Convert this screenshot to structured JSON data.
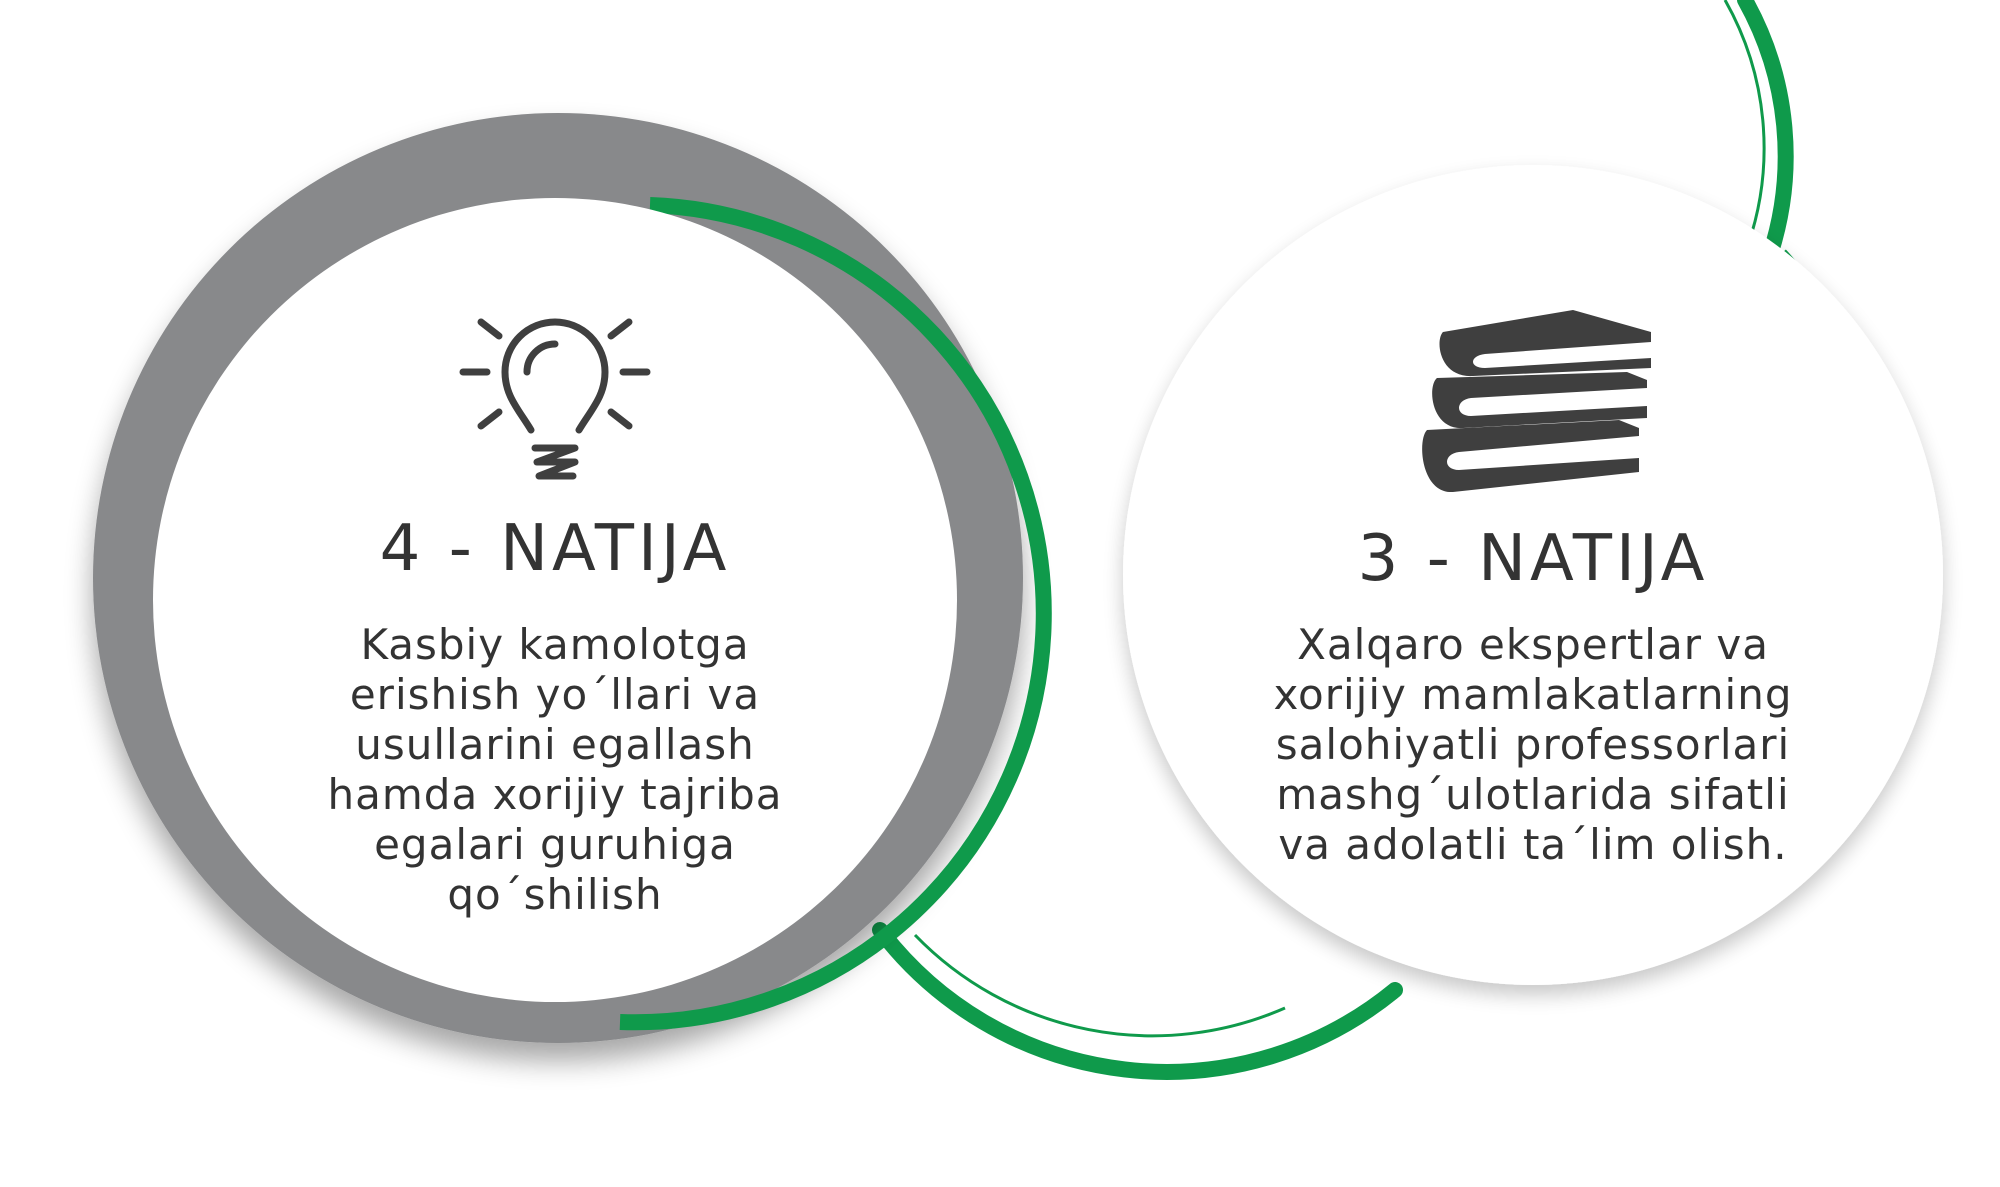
{
  "colors": {
    "accent_green": "#0f9a4b",
    "ring_gray": "#88898b",
    "text_dark": "#333333",
    "icon_dark": "#3f3f3f",
    "circle_fill": "#ffffff"
  },
  "cards": [
    {
      "title": "4 - NATIJA",
      "icon": "lightbulb-icon",
      "lines": [
        "Kasbiy kamolotga",
        "erishish yo´llari va",
        "usullarini egallash",
        "hamda xorijiy tajriba",
        "egalari guruhiga",
        "qo´shilish"
      ]
    },
    {
      "title": "3 - NATIJA",
      "icon": "books-icon",
      "lines": [
        "Xalqaro ekspertlar va",
        "xorijiy mamlakatlarning",
        "salohiyatli professorlari",
        "mashg´ulotlarida sifatli",
        "va adolatli ta´lim olish."
      ]
    }
  ]
}
